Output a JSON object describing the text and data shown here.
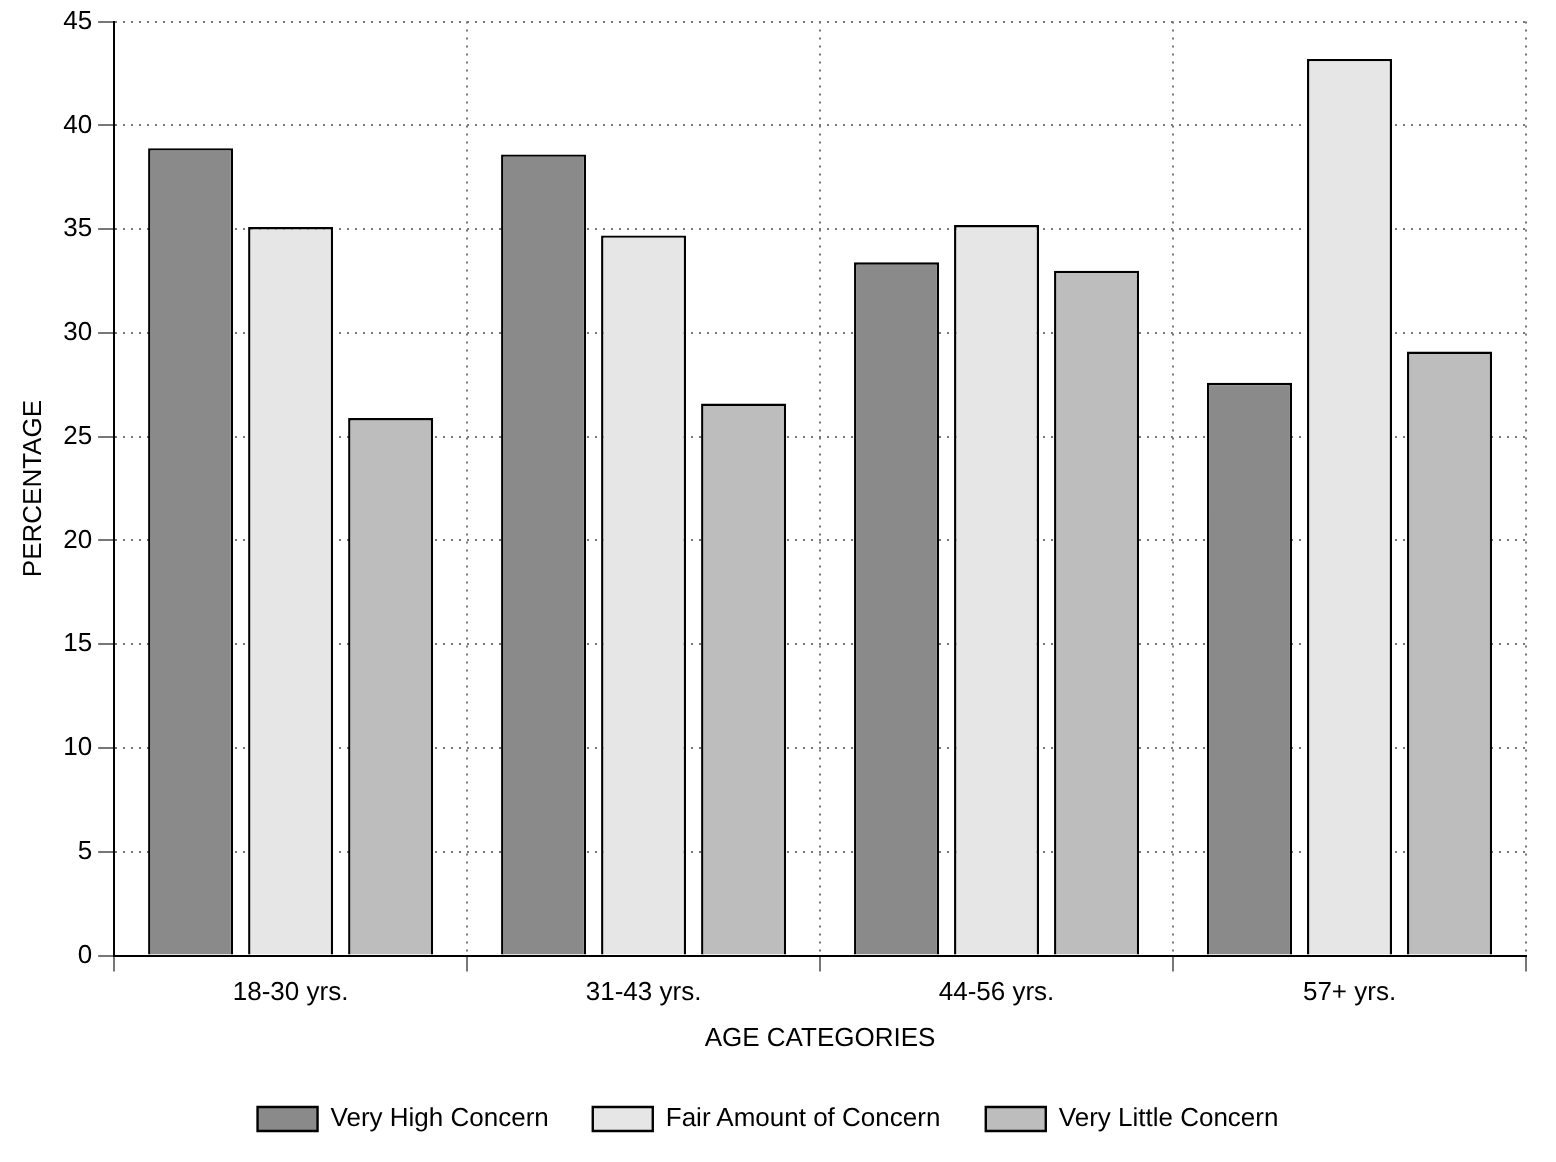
{
  "chart_data": {
    "type": "bar",
    "xlabel": "AGE CATEGORIES",
    "ylabel": "PERCENTAGE",
    "categories": [
      "18-30 yrs.",
      "31-43 yrs.",
      "44-56 yrs.",
      "57+ yrs."
    ],
    "series": [
      {
        "name": "Very High Concern",
        "color": "#8a8a8a",
        "values": [
          38.9,
          38.6,
          33.4,
          27.6
        ]
      },
      {
        "name": "Fair Amount of Concern",
        "color": "#e6e6e6",
        "values": [
          35.1,
          34.7,
          35.2,
          43.2
        ]
      },
      {
        "name": "Very Little Concern",
        "color": "#bdbdbd",
        "values": [
          25.9,
          26.6,
          33.0,
          29.1
        ]
      }
    ],
    "ylim": [
      0,
      45
    ],
    "yticks": [
      0,
      5,
      10,
      15,
      20,
      25,
      30,
      35,
      40,
      45
    ],
    "grid": true,
    "legend": "bottom"
  }
}
